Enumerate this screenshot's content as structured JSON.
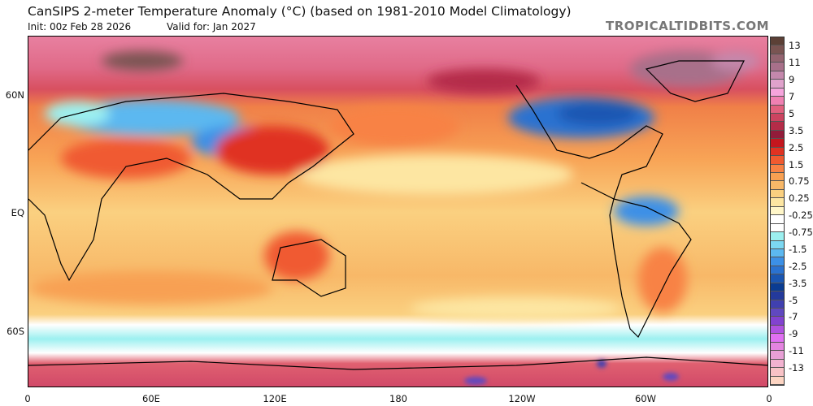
{
  "header": {
    "title": "CanSIPS 2-meter Temperature Anomaly (°C) (based on 1981-2010 Model Climatology)",
    "init": "Init: 00z Feb 28 2026",
    "valid": "Valid for: Jan 2027",
    "brand": "TROPICALTIDBITS.COM"
  },
  "axes": {
    "y_labels": [
      "60N",
      "EQ",
      "60S"
    ],
    "x_labels": [
      "0",
      "60E",
      "120E",
      "180",
      "120W",
      "60W",
      "0"
    ]
  },
  "colorbar": {
    "labels": [
      "13",
      "11",
      "9",
      "7",
      "5",
      "3.5",
      "2.5",
      "1.5",
      "0.75",
      "0.25",
      "-0.25",
      "-0.75",
      "-1.5",
      "-2.5",
      "-3.5",
      "-5",
      "-7",
      "-9",
      "-11",
      "-13"
    ],
    "colors": [
      "#5c4036",
      "#7a5452",
      "#946470",
      "#a8708a",
      "#c488ac",
      "#e0a2cc",
      "#f6a4dc",
      "#f080b2",
      "#e2607e",
      "#cc4460",
      "#b42c48",
      "#921c3a",
      "#c4161e",
      "#e03222",
      "#f05a30",
      "#f88244",
      "#f8a052",
      "#f8b868",
      "#fad080",
      "#fde6a2",
      "#fff6c8",
      "#ffffff",
      "#ffffff",
      "#9cf0f0",
      "#7cd8f2",
      "#5cb8f0",
      "#3c90e6",
      "#2a72d0",
      "#1a56b2",
      "#0a3c92",
      "#243a9c",
      "#4040b0",
      "#6048c0",
      "#8242d0",
      "#b052e0",
      "#e070f2",
      "#e484e0",
      "#e8a0d6",
      "#f2b2d0",
      "#f8c2c6",
      "#fcd4c2"
    ]
  }
}
